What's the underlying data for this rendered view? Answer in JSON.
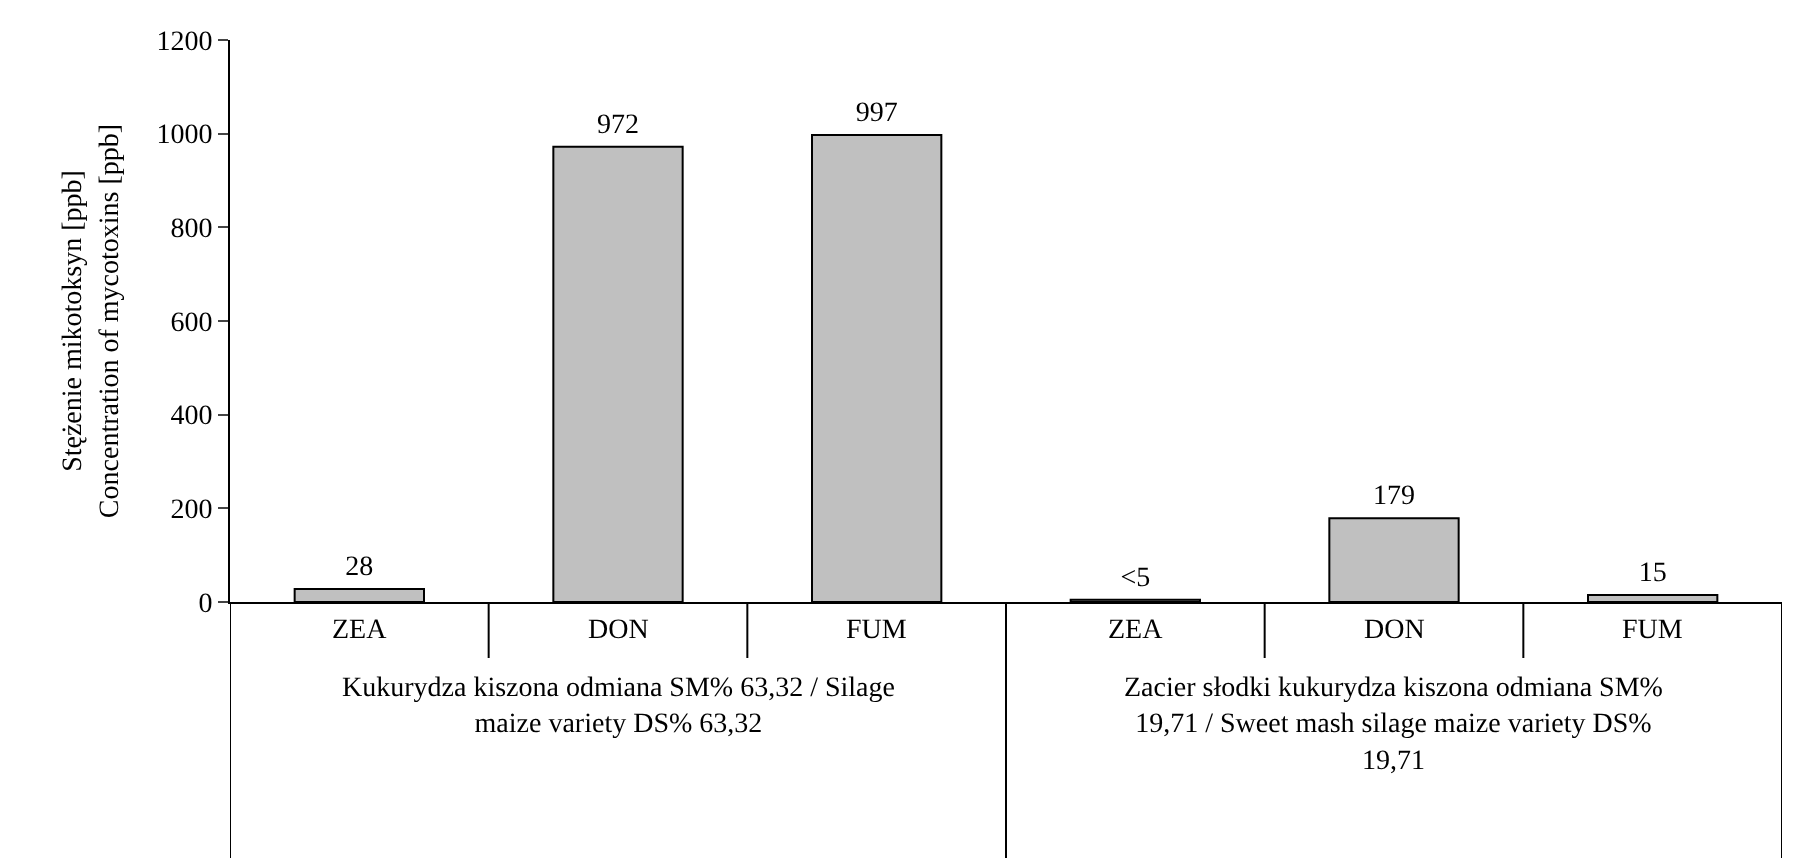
{
  "chart_data": {
    "type": "bar",
    "ylabel": "Stężenie mikotoksyn [ppb]\nConcentration of mycotoxins [ppb]",
    "categories": [
      "ZEA",
      "DON",
      "FUM",
      "ZEA",
      "DON",
      "FUM"
    ],
    "values": [
      28,
      972,
      997,
      5,
      179,
      15
    ],
    "value_labels": [
      "28",
      "972",
      "997",
      "<5",
      "179",
      "15"
    ],
    "color": "#c0c0c0",
    "ylim": [
      0,
      1200
    ],
    "yticks": [
      0,
      200,
      400,
      600,
      800,
      1000,
      1200
    ],
    "annotations": [
      "Kukurydza kiszona odmiana SM% 63,32 / Silage maize variety DS% 63,32",
      "Zacier słodki kukurydza kiszona odmiana SM% 19,71 / Sweet mash silage maize variety DS% 19,71"
    ],
    "legend": false
  }
}
